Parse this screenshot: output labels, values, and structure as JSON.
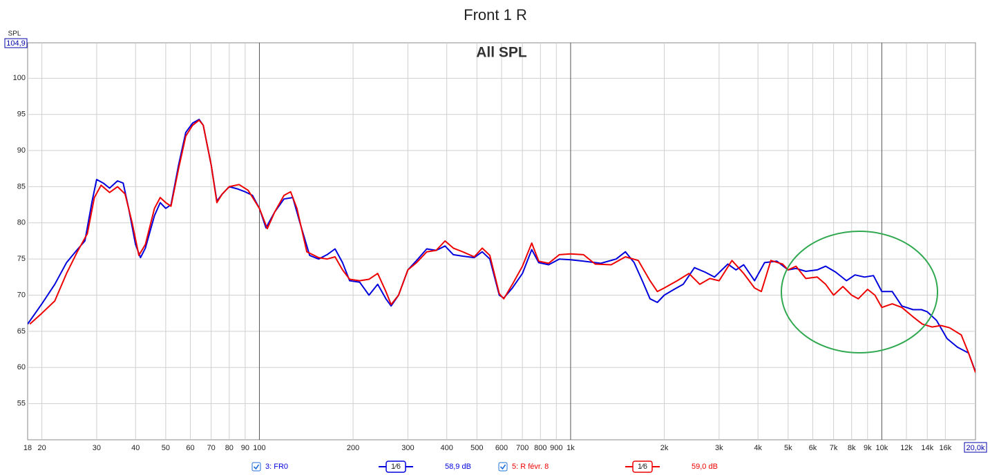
{
  "chart_data": {
    "type": "line",
    "title": "Front 1 R",
    "subtitle": "All SPL",
    "y_label": "SPL",
    "log_x": true,
    "grid": true,
    "xlim": [
      18,
      20000
    ],
    "ylim": [
      50,
      104.9
    ],
    "yticks": [
      55,
      60,
      65,
      70,
      75,
      80,
      85,
      90,
      95,
      100,
      {
        "value": 104.9,
        "label": "104,9"
      }
    ],
    "xticks": [
      18,
      20,
      30,
      40,
      50,
      60,
      70,
      80,
      90,
      100,
      200,
      300,
      400,
      500,
      600,
      700,
      800,
      900,
      {
        "value": 1000,
        "label": "1k"
      },
      {
        "value": 2000,
        "label": "2k"
      },
      {
        "value": 3000,
        "label": "3k"
      },
      {
        "value": 4000,
        "label": "4k"
      },
      {
        "value": 5000,
        "label": "5k"
      },
      {
        "value": 6000,
        "label": "6k"
      },
      {
        "value": 7000,
        "label": "7k"
      },
      {
        "value": 8000,
        "label": "8k"
      },
      {
        "value": 9000,
        "label": "9k"
      },
      {
        "value": 10000,
        "label": "10k"
      },
      {
        "value": 12000,
        "label": "12k"
      },
      {
        "value": 14000,
        "label": "14k"
      },
      {
        "value": 16000,
        "label": "16k"
      },
      {
        "value": 20000,
        "label": "20,0k"
      }
    ],
    "series": [
      {
        "name": "3: FR0",
        "smoothing": "1⁄6",
        "level": "58,9 dB",
        "color": "#0000dd",
        "x": [
          18,
          20,
          22,
          24,
          26,
          27.5,
          29,
          30,
          31.5,
          33,
          35,
          36.5,
          38,
          40,
          41.5,
          43,
          46,
          48,
          50,
          52,
          55,
          58,
          61,
          64,
          66,
          70,
          73,
          76,
          80,
          85,
          90,
          95,
          100,
          105,
          112,
          120,
          128,
          135,
          145,
          155,
          165,
          175,
          185,
          195,
          210,
          225,
          240,
          255,
          265,
          280,
          300,
          320,
          345,
          370,
          395,
          420,
          450,
          490,
          520,
          550,
          590,
          610,
          650,
          700,
          750,
          790,
          850,
          920,
          1000,
          1100,
          1250,
          1400,
          1500,
          1600,
          1700,
          1800,
          1900,
          2000,
          2150,
          2300,
          2500,
          2700,
          2900,
          3200,
          3400,
          3600,
          3900,
          4200,
          4600,
          5000,
          5300,
          5700,
          6200,
          6600,
          7100,
          7700,
          8200,
          8800,
          9400,
          10000,
          10800,
          11600,
          12600,
          13400,
          14000,
          15000,
          16200,
          17500,
          19000,
          20000
        ],
        "values": [
          66,
          68.8,
          71.5,
          74.5,
          76.3,
          77.5,
          83,
          86,
          85.5,
          84.8,
          85.8,
          85.5,
          82,
          77,
          75.2,
          76.5,
          81,
          82.8,
          82,
          82.5,
          88,
          92.5,
          93.8,
          94.3,
          93.5,
          88,
          83,
          84,
          85,
          84.7,
          84.3,
          83.8,
          82,
          79.3,
          81.5,
          83.3,
          83.5,
          80,
          75.5,
          75,
          75.6,
          76.4,
          74.5,
          72,
          71.8,
          70,
          71.5,
          69.5,
          68.5,
          70,
          73.5,
          74.8,
          76.4,
          76.2,
          76.8,
          75.6,
          75.4,
          75.2,
          76,
          75,
          70,
          69.6,
          71,
          73,
          76.3,
          74.5,
          74.2,
          75,
          74.9,
          74.7,
          74.4,
          75,
          76,
          74.5,
          72,
          69.5,
          69,
          70,
          70.8,
          71.5,
          73.8,
          73.2,
          72.5,
          74.3,
          73.5,
          74.2,
          72,
          74.5,
          74.7,
          73.5,
          73.7,
          73.3,
          73.5,
          74,
          73.2,
          72,
          72.8,
          72.5,
          72.7,
          70.5,
          70.5,
          68.5,
          68,
          68,
          67.7,
          66.5,
          64,
          62.8,
          62,
          59.4
        ]
      },
      {
        "name": "5: R févr. 8",
        "smoothing": "1⁄6",
        "level": "59,0 dB",
        "color": "#ee0000",
        "x": [
          18.3,
          20,
          22,
          24,
          26,
          28,
          29.5,
          31,
          33,
          35,
          37,
          39,
          41,
          43,
          46,
          48,
          50,
          52,
          55,
          58,
          61,
          64,
          66,
          70,
          73,
          76,
          80,
          86,
          92,
          100,
          106,
          112,
          120,
          126,
          132,
          142,
          155,
          165,
          175,
          185,
          195,
          210,
          225,
          240,
          255,
          265,
          280,
          300,
          320,
          345,
          370,
          395,
          420,
          450,
          490,
          520,
          550,
          590,
          610,
          650,
          700,
          750,
          790,
          850,
          920,
          1000,
          1100,
          1200,
          1350,
          1500,
          1650,
          1800,
          1900,
          2000,
          2200,
          2400,
          2600,
          2800,
          3000,
          3300,
          3600,
          3900,
          4100,
          4400,
          4800,
          5000,
          5300,
          5700,
          6200,
          6600,
          7000,
          7500,
          8000,
          8400,
          9000,
          9500,
          10000,
          10800,
          11600,
          12600,
          13500,
          14500,
          15500,
          16500,
          18000,
          19000,
          20000
        ],
        "values": [
          66,
          67.5,
          69.2,
          73,
          76,
          78.5,
          83.5,
          85.2,
          84.2,
          85,
          84,
          80,
          75.5,
          77,
          82,
          83.5,
          82.8,
          82.3,
          87.5,
          92,
          93.5,
          94.2,
          93.5,
          88,
          82.8,
          84,
          85,
          85.3,
          84.5,
          82,
          79.2,
          81.5,
          83.8,
          84.3,
          82,
          76,
          75.2,
          75,
          75.3,
          73.5,
          72.2,
          72,
          72.2,
          73,
          70.5,
          68.7,
          70,
          73.5,
          74.5,
          76,
          76.2,
          77.5,
          76.5,
          76,
          75.3,
          76.5,
          75.5,
          70.2,
          69.5,
          71.5,
          74,
          77.2,
          74.7,
          74.4,
          75.6,
          75.7,
          75.6,
          74.3,
          74.2,
          75.3,
          74.8,
          72,
          70.5,
          71,
          72,
          73,
          71.5,
          72.3,
          72,
          74.8,
          73,
          71,
          70.5,
          74.8,
          74.3,
          73.5,
          74,
          72.3,
          72.5,
          71.5,
          70,
          71.2,
          70,
          69.5,
          70.8,
          70,
          68.3,
          68.8,
          68.3,
          67,
          66,
          65.6,
          65.8,
          65.5,
          64.5,
          62,
          59.3
        ]
      }
    ]
  }
}
